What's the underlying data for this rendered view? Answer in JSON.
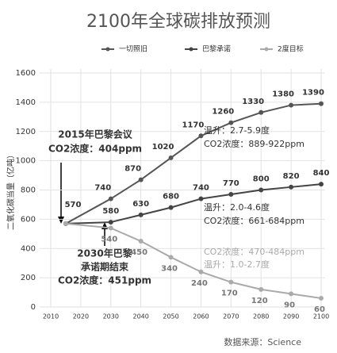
{
  "chart_data": {
    "type": "line",
    "title": "2100年全球碳排放预测",
    "y_label": "二氧化碳当量（亿吨）",
    "x": [
      2015,
      2030,
      2040,
      2050,
      2060,
      2070,
      2080,
      2090,
      2100
    ],
    "series": [
      {
        "name": "一切照旧",
        "color": "#555555",
        "values": [
          570,
          740,
          870,
          1020,
          1170,
          1260,
          1330,
          1380,
          1390
        ]
      },
      {
        "name": "巴黎承诺",
        "color": "#444444",
        "values": [
          570,
          580,
          630,
          680,
          740,
          770,
          800,
          820,
          840
        ]
      },
      {
        "name": "2度目标",
        "color": "#aaaaaa",
        "values": [
          570,
          540,
          450,
          340,
          240,
          170,
          120,
          90,
          60
        ]
      }
    ],
    "xlim": [
      2010,
      2100
    ],
    "xticks": [
      2010,
      2020,
      2030,
      2040,
      2050,
      2060,
      2070,
      2080,
      2090,
      2100
    ],
    "ylim": [
      0,
      1600
    ],
    "yticks": [
      0,
      200,
      400,
      600,
      800,
      1000,
      1200,
      1400,
      1600
    ],
    "grid": true,
    "annotations": [
      "2015年巴黎会议",
      "CO2浓度：404ppm",
      "2030年巴黎",
      "承诺期结束",
      "CO2浓度：451ppm",
      "温升：2.7-5.9度",
      "CO2浓度：889-922ppm",
      "温升：2.0-4.6度",
      "CO2浓度：661-684ppm",
      "CO2浓度：470-484ppm",
      "温升：1.0-2.7度"
    ],
    "source": "数据来源：Science"
  }
}
